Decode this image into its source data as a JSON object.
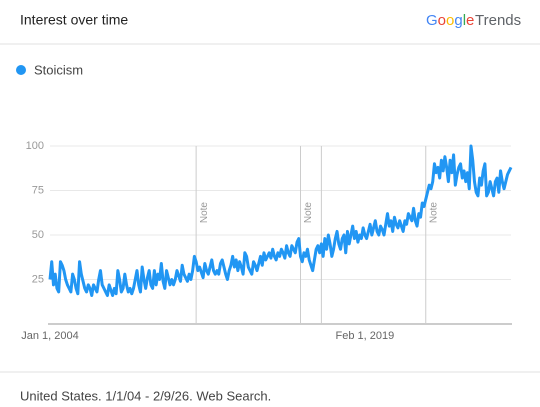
{
  "header": {
    "title": "Interest over time",
    "brand": "Google",
    "product": "Trends"
  },
  "chart_data": {
    "type": "line",
    "categories": [
      "Jan 1, 2004",
      null,
      null,
      null,
      null,
      null,
      null,
      null,
      null,
      null,
      null,
      null,
      null,
      null,
      null,
      null,
      null,
      null,
      null,
      null,
      null,
      null,
      null,
      null,
      null,
      null,
      null,
      null,
      null,
      null,
      null,
      null,
      null,
      null,
      null,
      null,
      null,
      null,
      null,
      null,
      null,
      null,
      null,
      null,
      null,
      null,
      null,
      null,
      null,
      null,
      null,
      null,
      null,
      null,
      null,
      null,
      null,
      null,
      null,
      null,
      null,
      null,
      null,
      null,
      null,
      null,
      null,
      null,
      null,
      null,
      null,
      null,
      null,
      null,
      null,
      null,
      null,
      null,
      null,
      null,
      null,
      null,
      null,
      null,
      null,
      null,
      null,
      null,
      null,
      null,
      null,
      null,
      null,
      null,
      null,
      null,
      null,
      null,
      null,
      null,
      null,
      null,
      null,
      null,
      null,
      null,
      null,
      null,
      null,
      null,
      null,
      null,
      null,
      null,
      null,
      null,
      null,
      null,
      null,
      null,
      null,
      null,
      null,
      null,
      null,
      null,
      null,
      null,
      null,
      null,
      null,
      null,
      null,
      null,
      null,
      null,
      null,
      null,
      null,
      null,
      null,
      null,
      null,
      null,
      null,
      null,
      null,
      null,
      null,
      null,
      null,
      null,
      null,
      null,
      null,
      null,
      null,
      null,
      null,
      null,
      null,
      null,
      null,
      null,
      null,
      null,
      null,
      null,
      null,
      null,
      null,
      null,
      null,
      null,
      null,
      null,
      null,
      null,
      null,
      null,
      null,
      "Feb 1, 2019",
      null,
      null,
      null,
      null,
      null,
      null,
      null,
      null,
      null,
      null,
      null,
      null,
      null,
      null,
      null,
      null,
      null,
      null,
      null,
      null,
      null,
      null,
      null,
      null,
      null,
      null,
      null,
      null,
      null,
      null,
      null,
      null,
      null,
      null,
      null,
      null,
      null,
      null,
      null,
      null,
      null,
      null,
      null,
      null,
      null,
      null,
      null,
      null,
      null,
      null,
      null,
      null,
      null,
      null,
      null,
      null,
      null,
      null,
      null,
      null,
      null,
      null,
      null,
      null,
      null,
      null,
      null,
      null,
      null,
      null,
      null,
      null,
      null,
      null,
      null,
      null,
      null,
      null,
      null,
      null,
      null,
      null,
      null,
      null
    ],
    "series": [
      {
        "name": "Stoicism",
        "color": "#2196f3",
        "values": [
          25,
          35,
          22,
          28,
          20,
          18,
          35,
          33,
          30,
          25,
          22,
          20,
          18,
          28,
          25,
          20,
          17,
          35,
          28,
          24,
          20,
          18,
          22,
          20,
          16,
          22,
          20,
          18,
          25,
          30,
          22,
          20,
          18,
          16,
          22,
          19,
          16,
          20,
          17,
          30,
          25,
          18,
          20,
          28,
          22,
          18,
          20,
          17,
          20,
          25,
          30,
          22,
          18,
          32,
          25,
          20,
          26,
          30,
          22,
          20,
          30,
          22,
          28,
          25,
          34,
          24,
          20,
          30,
          26,
          22,
          25,
          22,
          25,
          30,
          27,
          24,
          33,
          28,
          26,
          24,
          28,
          25,
          30,
          38,
          35,
          30,
          32,
          29,
          26,
          34,
          30,
          28,
          32,
          36,
          30,
          28,
          30,
          28,
          34,
          36,
          32,
          28,
          25,
          30,
          33,
          38,
          32,
          36,
          30,
          35,
          32,
          28,
          40,
          38,
          32,
          30,
          28,
          35,
          33,
          30,
          34,
          38,
          33,
          40,
          36,
          38,
          40,
          37,
          42,
          38,
          36,
          40,
          38,
          42,
          40,
          37,
          44,
          40,
          38,
          44,
          42,
          40,
          46,
          48,
          38,
          35,
          40,
          38,
          42,
          36,
          33,
          30,
          36,
          42,
          44,
          40,
          45,
          38,
          48,
          42,
          50,
          45,
          38,
          42,
          48,
          52,
          45,
          42,
          48,
          50,
          40,
          52,
          45,
          50,
          55,
          48,
          52,
          46,
          50,
          48,
          54,
          50,
          48,
          52,
          56,
          50,
          54,
          58,
          52,
          50,
          55,
          53,
          50,
          56,
          62,
          55,
          58,
          52,
          60,
          56,
          54,
          58,
          55,
          52,
          58,
          56,
          62,
          60,
          58,
          65,
          58,
          55,
          62,
          60,
          68,
          66,
          70,
          74,
          78,
          76,
          80,
          90,
          85,
          88,
          82,
          92,
          86,
          94,
          88,
          80,
          92,
          85,
          95,
          78,
          84,
          88,
          90,
          82,
          86,
          80,
          85,
          76,
          100,
          92,
          80,
          74,
          72,
          82,
          78,
          86,
          90,
          72,
          74,
          80,
          76,
          72,
          80,
          82,
          74,
          86,
          80,
          76,
          80,
          84,
          86,
          88
        ]
      }
    ],
    "ylim": [
      0,
      100
    ],
    "yticks": [
      25,
      50,
      75,
      100
    ],
    "grid": true,
    "annotations": [
      {
        "x": 84,
        "text": "Note"
      },
      {
        "x": 144,
        "text": "Note"
      },
      {
        "x": 156
      },
      {
        "x": 216,
        "text": "Note"
      }
    ]
  },
  "footer": "United States. 1/1/04 - 2/9/26. Web Search."
}
